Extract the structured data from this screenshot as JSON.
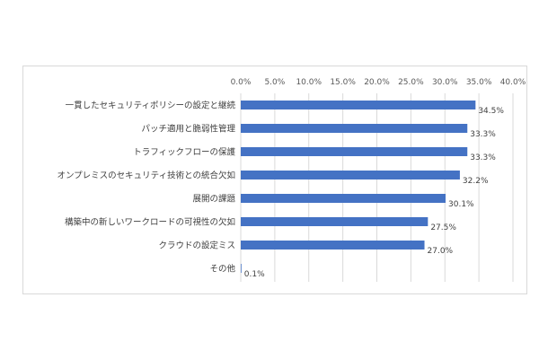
{
  "chart_data": {
    "type": "bar",
    "orientation": "horizontal",
    "categories": [
      "一貫したセキュリティポリシーの設定と継続",
      "パッチ適用と脆弱性管理",
      "トラフィックフローの保護",
      "オンプレミスのセキュリティ技術との統合欠如",
      "展開の課題",
      "構築中の新しいワークロードの可視性の欠如",
      "クラウドの設定ミス",
      "その他"
    ],
    "values": [
      34.5,
      33.3,
      33.3,
      32.2,
      30.1,
      27.5,
      27.0,
      0.1
    ],
    "value_labels": [
      "34.5%",
      "33.3%",
      "33.3%",
      "32.2%",
      "30.1%",
      "27.5%",
      "27.0%",
      "0.1%"
    ],
    "xlim": [
      0,
      40
    ],
    "ticks": [
      0,
      5,
      10,
      15,
      20,
      25,
      30,
      35,
      40
    ],
    "tick_labels": [
      "0.0%",
      "5.0%",
      "10.0%",
      "15.0%",
      "20.0%",
      "25.0%",
      "30.0%",
      "35.0%",
      "40.0%"
    ],
    "x_axis_position": "top",
    "grid": true,
    "legend": "none",
    "bar_color": "#4472c4",
    "title": "",
    "xlabel": "",
    "ylabel": ""
  }
}
